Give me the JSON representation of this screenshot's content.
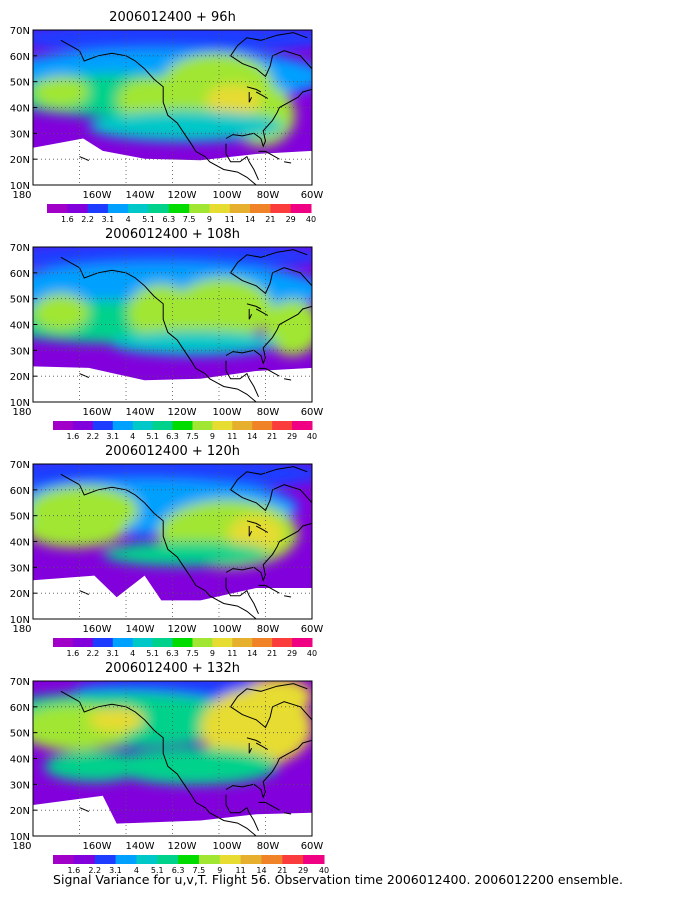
{
  "chart_data": [
    {
      "type": "heatmap",
      "title": "2006012400 + 96h",
      "x_ticks": [
        "180",
        "160W",
        "140W",
        "120W",
        "100W",
        "80W",
        "60W"
      ],
      "y_ticks": [
        "10N",
        "20N",
        "30N",
        "40N",
        "50N",
        "60N",
        "70N"
      ],
      "xlim": [
        -180,
        -60
      ],
      "ylim": [
        10,
        70
      ],
      "x_ticks_visible_count": 7
    },
    {
      "type": "heatmap",
      "title": "2006012400 + 108h",
      "x_ticks": [
        "180",
        "160W",
        "140W",
        "120W",
        "100W",
        "80W",
        "60W"
      ],
      "y_ticks": [
        "10N",
        "20N",
        "30N",
        "40N",
        "50N",
        "60N",
        "70N"
      ],
      "xlim": [
        -180,
        -60
      ],
      "ylim": [
        10,
        70
      ]
    },
    {
      "type": "heatmap",
      "title": "2006012400 + 120h",
      "x_ticks": [
        "180",
        "160W",
        "140W",
        "120W",
        "100W",
        "80W",
        "60W"
      ],
      "y_ticks": [
        "10N",
        "20N",
        "30N",
        "40N",
        "50N",
        "60N",
        "70N"
      ],
      "xlim": [
        -180,
        -60
      ],
      "ylim": [
        10,
        70
      ]
    },
    {
      "type": "heatmap",
      "title": "2006012400 + 132h",
      "x_ticks": [
        "180",
        "160W",
        "140W",
        "120W",
        "100W",
        "80W",
        "60W"
      ],
      "y_ticks": [
        "10N",
        "20N",
        "30N",
        "40N",
        "50N",
        "60N",
        "70N"
      ],
      "xlim": [
        -180,
        -60
      ],
      "ylim": [
        10,
        70
      ]
    }
  ],
  "colorbar": {
    "labels": [
      "1.6",
      "2.2",
      "3.1",
      "4",
      "5.1",
      "6.3",
      "7.5",
      "9",
      "11",
      "14",
      "21",
      "29",
      "40"
    ],
    "colors": [
      "#a000c8",
      "#8200dc",
      "#1e3cff",
      "#00a0ff",
      "#00c8c8",
      "#00d28c",
      "#00dc00",
      "#a0e632",
      "#e6dc32",
      "#e6af2d",
      "#f08228",
      "#fa3c3c",
      "#f00082"
    ]
  },
  "caption": "Signal Variance for u,v,T. Flight 56. Observation time 2006012400. 2006012200 ensemble.",
  "palette": {
    "c1": "#a000c8",
    "c2": "#8200dc",
    "c3": "#1e3cff",
    "c4": "#00a0ff",
    "c5": "#00c8c8",
    "c6": "#00d28c",
    "c7": "#00dc00",
    "c8": "#a0e632",
    "c9": "#e6dc32",
    "c10": "#e6af2d"
  }
}
